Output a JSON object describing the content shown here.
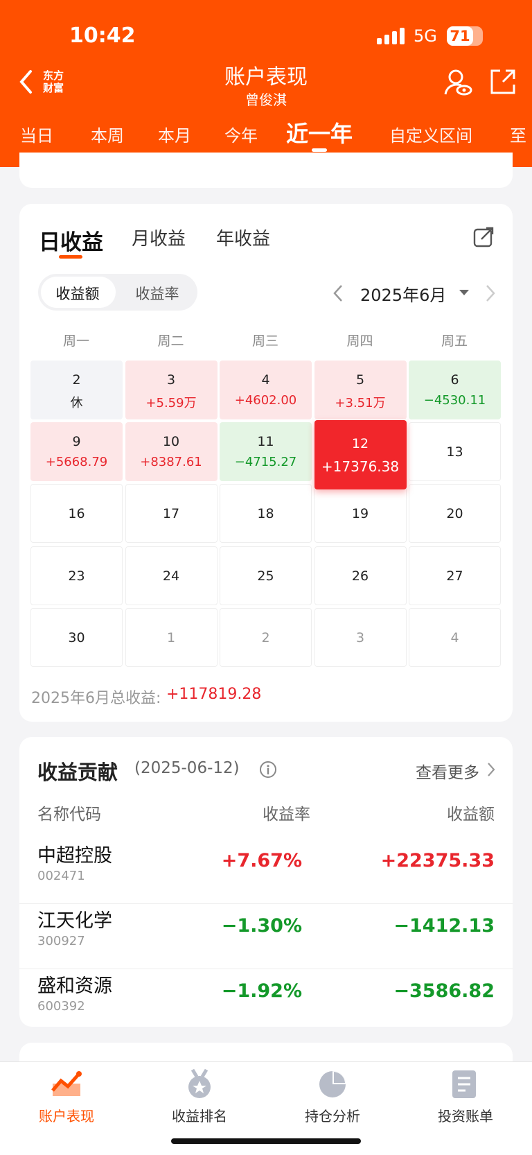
{
  "status": {
    "time": "10:42",
    "network": "5G",
    "battery": "71"
  },
  "header": {
    "logo": [
      "东方",
      "财富"
    ],
    "title": "账户表现",
    "subtitle": "曾俊淇",
    "tabs": [
      "当日",
      "本周",
      "本月",
      "今年",
      "近一年",
      "自定义区间",
      "至"
    ],
    "active_tab": 4
  },
  "calendar": {
    "tabs": [
      "日收益",
      "月收益",
      "年收益"
    ],
    "toggle": [
      "收益额",
      "收益率"
    ],
    "month": "2025年6月",
    "weekdays": [
      "周一",
      "周二",
      "周三",
      "周四",
      "周五"
    ],
    "cells": [
      {
        "day": "2",
        "note": "休"
      },
      {
        "day": "3",
        "amount": "+5.59万"
      },
      {
        "day": "4",
        "amount": "+4602.00"
      },
      {
        "day": "5",
        "amount": "+3.51万"
      },
      {
        "day": "6",
        "amount": "−4530.11"
      },
      {
        "day": "9",
        "amount": "+5668.79"
      },
      {
        "day": "10",
        "amount": "+8387.61"
      },
      {
        "day": "11",
        "amount": "−4715.27"
      },
      {
        "day": "12",
        "amount": "+17376.38",
        "selected": true
      },
      {
        "day": "13"
      },
      {
        "day": "16"
      },
      {
        "day": "17"
      },
      {
        "day": "18"
      },
      {
        "day": "19"
      },
      {
        "day": "20"
      },
      {
        "day": "23"
      },
      {
        "day": "24"
      },
      {
        "day": "25"
      },
      {
        "day": "26"
      },
      {
        "day": "27"
      },
      {
        "day": "30"
      },
      {
        "day": "1",
        "other_month": true
      },
      {
        "day": "2",
        "other_month": true
      },
      {
        "day": "3",
        "other_month": true
      },
      {
        "day": "4",
        "other_month": true
      }
    ],
    "total_label": "2025年6月总收益:",
    "total": "+117819.28"
  },
  "contribution": {
    "title": "收益贡献",
    "date": "(2025-06-12)",
    "more": "查看更多",
    "headers": [
      "名称代码",
      "收益率",
      "收益额"
    ],
    "rows": [
      {
        "name": "中超控股",
        "code": "002471",
        "rate": "+7.67%",
        "amount": "+22375.33"
      },
      {
        "name": "江天化学",
        "code": "300927",
        "rate": "−1.30%",
        "amount": "−1412.13"
      },
      {
        "name": "盛和资源",
        "code": "600392",
        "rate": "−1.92%",
        "amount": "−3586.82"
      }
    ]
  },
  "nav": {
    "items": [
      "账户表现",
      "收益排名",
      "持仓分析",
      "投资账单"
    ],
    "active": 0
  }
}
